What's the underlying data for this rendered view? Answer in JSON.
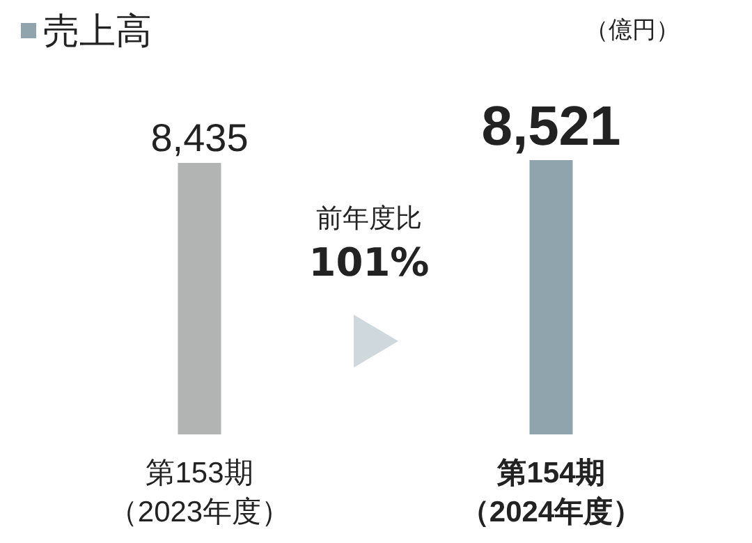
{
  "chart_data": {
    "type": "bar",
    "ylabel": "（億円）",
    "categories": [
      "第153期（2023年度）",
      "第154期（2024年度）"
    ],
    "series": [
      {
        "name": "売上高",
        "color": "#8fa4ac",
        "colors": [
          "#b2b4b4",
          "#8fa4ac"
        ],
        "values": [
          8435,
          8521
        ],
        "value_labels": [
          "8,435",
          "8,521"
        ]
      }
    ],
    "annotations": [
      "前年度比",
      "101%"
    ],
    "legend": "top left",
    "grid": false
  }
}
